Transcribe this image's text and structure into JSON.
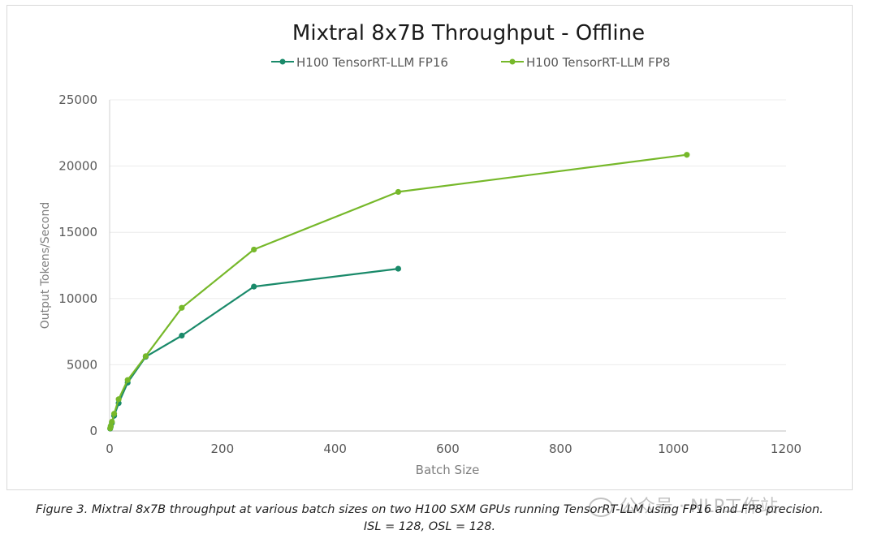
{
  "chart_data": {
    "type": "line",
    "title": "Mixtral 8x7B Throughput - Offline",
    "xlabel": "Batch Size",
    "ylabel": "Output Tokens/Second",
    "xlim": [
      0,
      1200
    ],
    "ylim": [
      0,
      25000
    ],
    "x_ticks": [
      "0",
      "200",
      "400",
      "600",
      "800",
      "1000",
      "1200"
    ],
    "y_ticks": [
      "0",
      "5000",
      "10000",
      "15000",
      "20000",
      "25000"
    ],
    "grid": "horizontal",
    "legend_position": "top",
    "series": [
      {
        "name": "H100 TensorRT-LLM FP16",
        "color": "#1a8a6a",
        "x": [
          1,
          2,
          4,
          8,
          16,
          32,
          64,
          128,
          256,
          512
        ],
        "y": [
          180,
          330,
          600,
          1150,
          2100,
          3650,
          5600,
          7200,
          10900,
          12250
        ]
      },
      {
        "name": "H100 TensorRT-LLM FP8",
        "color": "#76b82a",
        "x": [
          1,
          2,
          4,
          8,
          16,
          32,
          64,
          128,
          256,
          512,
          1024
        ],
        "y": [
          200,
          380,
          700,
          1300,
          2400,
          3850,
          5650,
          9300,
          13700,
          18050,
          20850
        ]
      }
    ]
  },
  "caption": {
    "line1": "Figure 3. Mixtral 8x7B throughput at various batch sizes on two H100 SXM GPUs running TensorRT-LLM using FP16 and FP8 precision.",
    "line2": "ISL = 128, OSL = 128."
  },
  "watermark": {
    "text": "公众号 · NLP工作站",
    "icon": "wechat-icon"
  }
}
